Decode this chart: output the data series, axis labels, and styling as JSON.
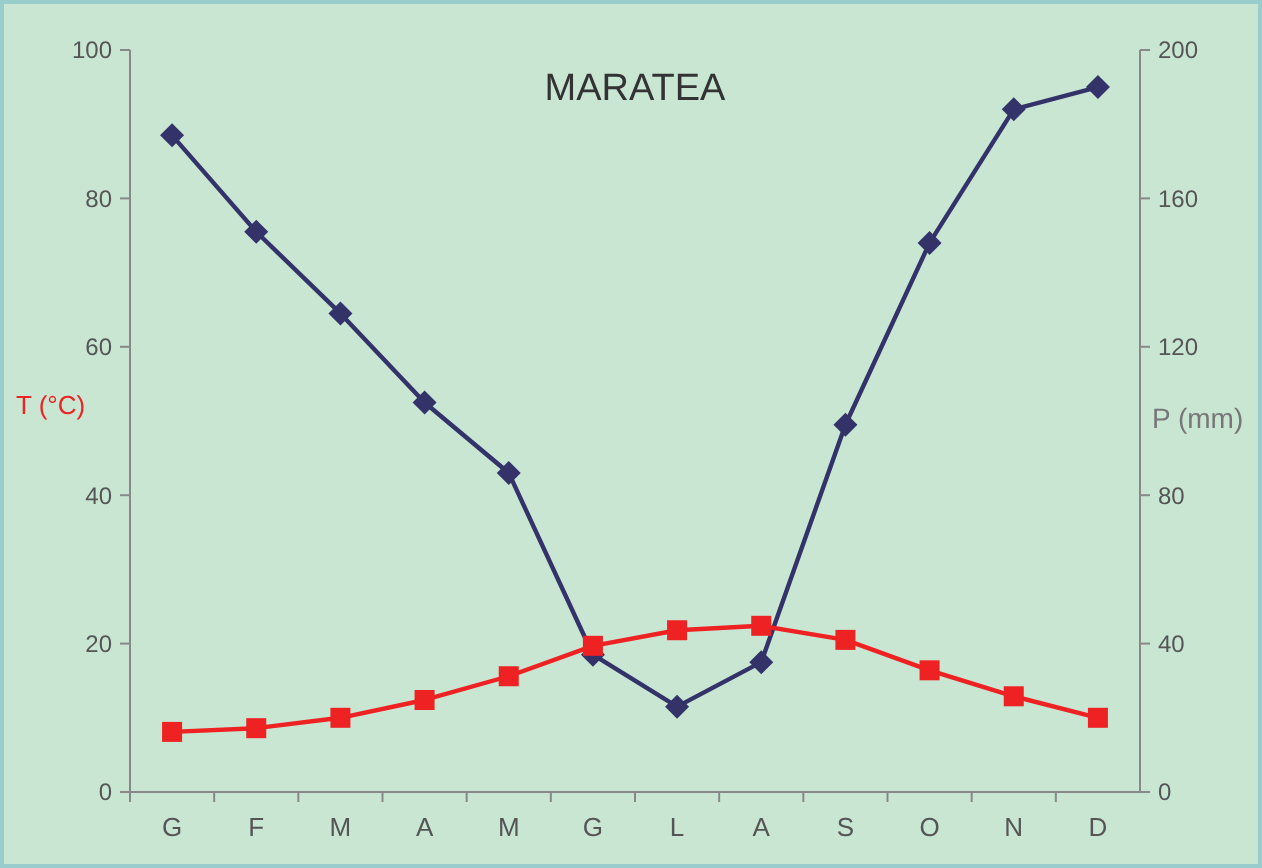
{
  "chart_data": {
    "type": "line",
    "title": "MARATEA",
    "ylabel": "T (°C)",
    "y2label": "P (mm)",
    "categories": [
      "G",
      "F",
      "M",
      "A",
      "M",
      "G",
      "L",
      "A",
      "S",
      "O",
      "N",
      "D"
    ],
    "series": [
      {
        "name": null,
        "color": "#ee2222",
        "marker": "square",
        "values": [
          8.1,
          8.6,
          10,
          12.4,
          15.6,
          19.7,
          21.8,
          22.4,
          20.5,
          16.4,
          12.9,
          10
        ]
      },
      {
        "name": null,
        "color": "#33336a",
        "marker": "diamond",
        "axis": "y2",
        "values": [
          177,
          151,
          129,
          105,
          86,
          37,
          23,
          35,
          99,
          148,
          184,
          190
        ]
      }
    ],
    "ylim": [
      0,
      100
    ],
    "yticks": [
      0,
      20,
      40,
      60,
      80,
      100
    ],
    "y2lim": [
      0,
      200
    ],
    "y2ticks": [
      0,
      40,
      80,
      120,
      160,
      200
    ]
  }
}
